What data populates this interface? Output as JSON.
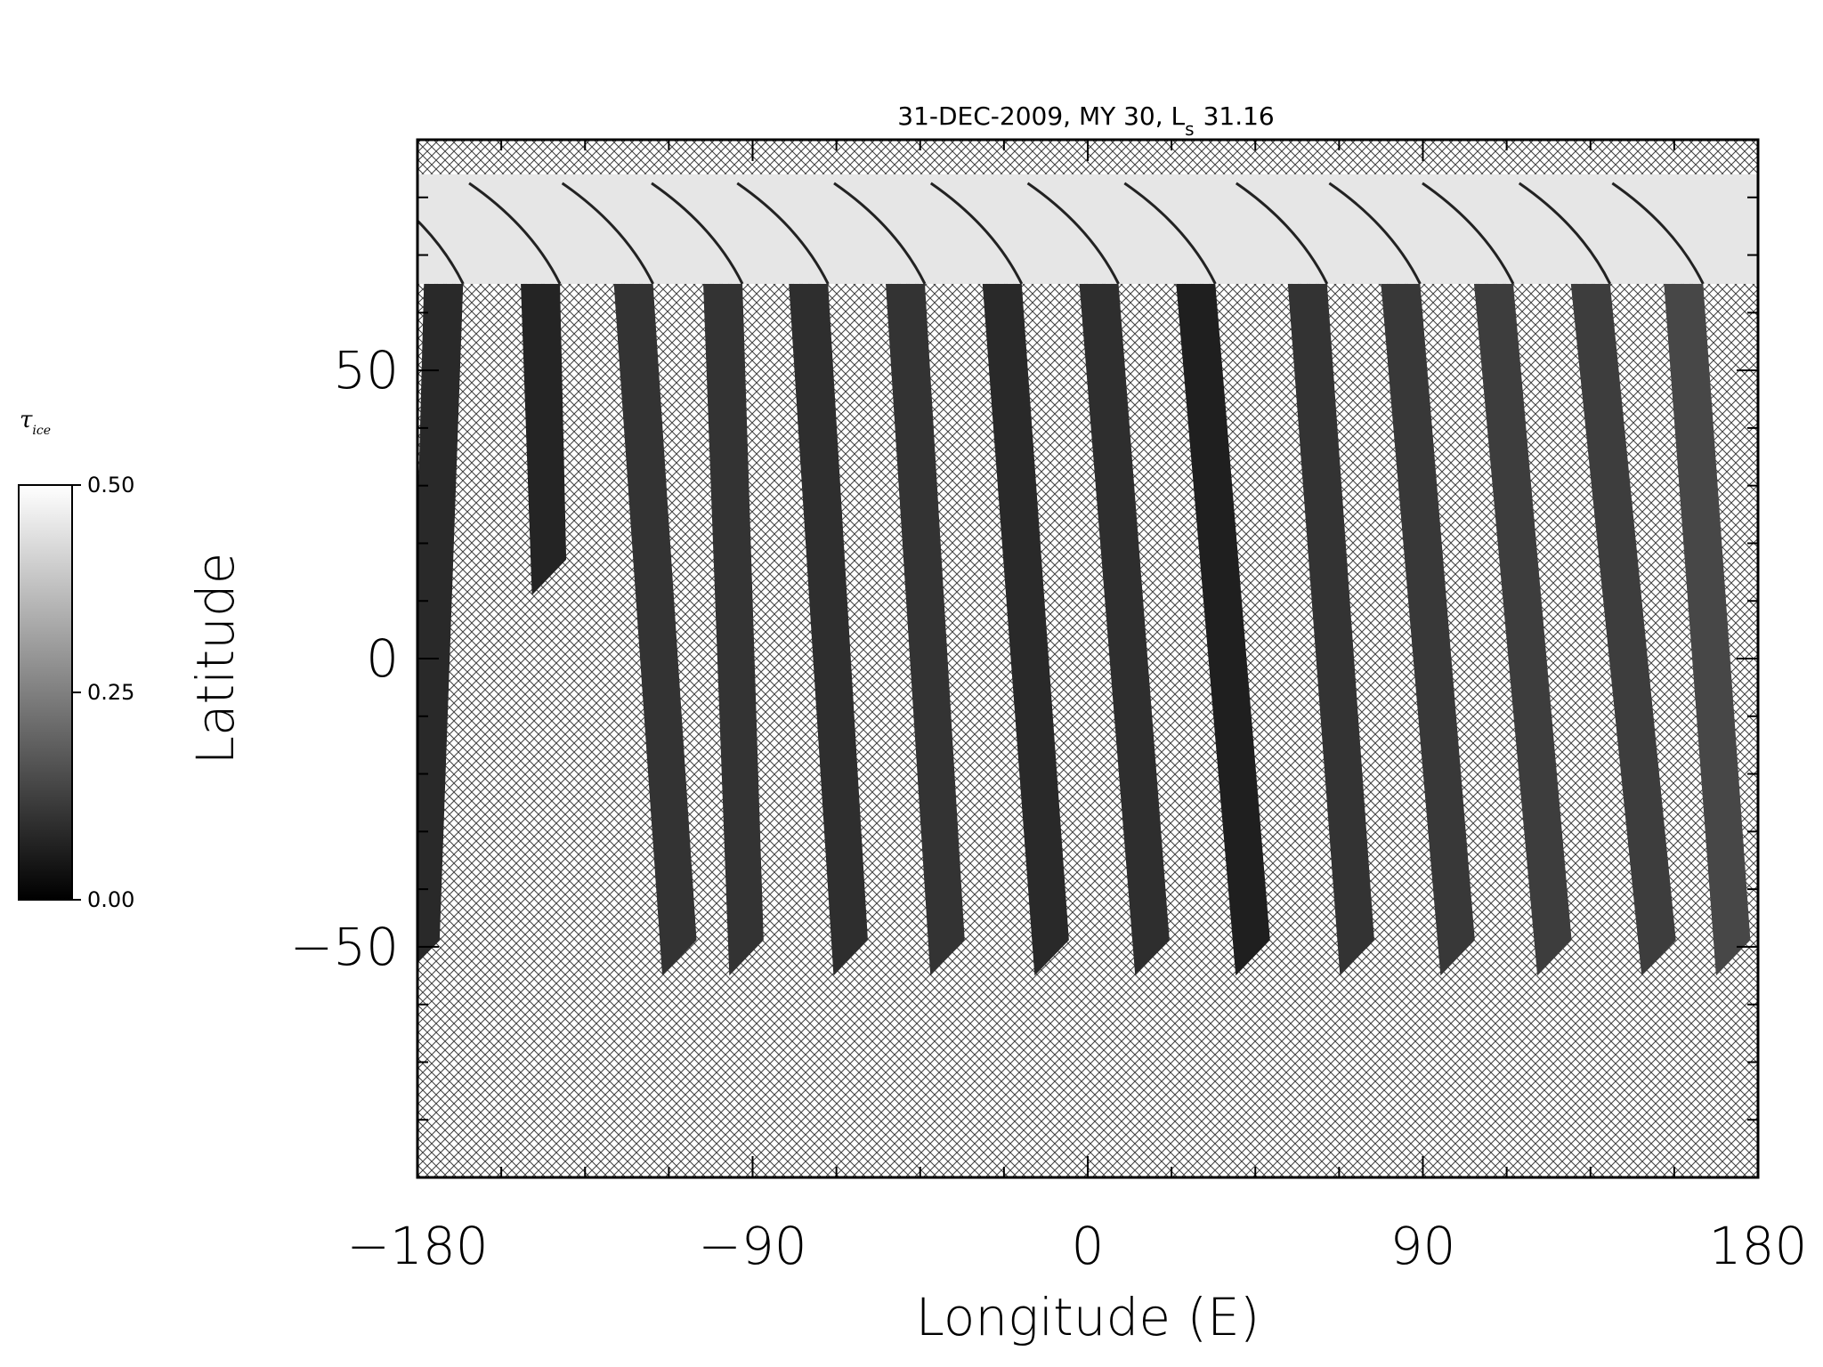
{
  "chart_data": {
    "type": "heatmap",
    "title": "31-DEC-2009, MY 30,  L",
    "title_subscript": "s",
    "title_value": "31.16",
    "xlabel": "Longitude (E)",
    "ylabel": "Latitude",
    "xlim": [
      -180,
      180
    ],
    "ylim": [
      -90,
      90
    ],
    "x_tick_labels": [
      "−180",
      "−90",
      "0",
      "90",
      "180"
    ],
    "x_ticks": [
      -180,
      -90,
      0,
      90,
      180
    ],
    "y_tick_labels": [
      "50",
      "0",
      "−50"
    ],
    "y_ticks": [
      50,
      0,
      -50
    ],
    "colorbar": {
      "label": "τ",
      "label_subscript": "ice",
      "range": [
        0.0,
        0.5
      ],
      "tick_labels": [
        "0.50",
        "0.25",
        "0.00"
      ],
      "ticks": [
        0.5,
        0.25,
        0.0
      ],
      "colormap": "grayscale"
    },
    "missing_data": "cross-hatched",
    "north_cap_band": {
      "lat_range": [
        65,
        84
      ],
      "value_approx": 0.45
    },
    "swaths": [
      {
        "lon_top": -173,
        "lat_top": 65,
        "lon_bottom": -178,
        "lat_bottom": -55,
        "value_approx": 0.08
      },
      {
        "lon_top": -147,
        "lat_top": 65,
        "lon_bottom": -144,
        "lat_bottom": 11,
        "value_approx": 0.07
      },
      {
        "lon_top": -122,
        "lat_top": 65,
        "lon_bottom": -109,
        "lat_bottom": -55,
        "value_approx": 0.1
      },
      {
        "lon_top": -98,
        "lat_top": 65,
        "lon_bottom": -91,
        "lat_bottom": -55,
        "value_approx": 0.1
      },
      {
        "lon_top": -75,
        "lat_top": 65,
        "lon_bottom": -63,
        "lat_bottom": -55,
        "value_approx": 0.09
      },
      {
        "lon_top": -49,
        "lat_top": 65,
        "lon_bottom": -37,
        "lat_bottom": -55,
        "value_approx": 0.1
      },
      {
        "lon_top": -23,
        "lat_top": 65,
        "lon_bottom": -9,
        "lat_bottom": -55,
        "value_approx": 0.08
      },
      {
        "lon_top": 3,
        "lat_top": 65,
        "lon_bottom": 18,
        "lat_bottom": -55,
        "value_approx": 0.09
      },
      {
        "lon_top": 29,
        "lat_top": 65,
        "lon_bottom": 45,
        "lat_bottom": -55,
        "value_approx": 0.06
      },
      {
        "lon_top": 59,
        "lat_top": 65,
        "lon_bottom": 73,
        "lat_bottom": -55,
        "value_approx": 0.1
      },
      {
        "lon_top": 84,
        "lat_top": 65,
        "lon_bottom": 100,
        "lat_bottom": -55,
        "value_approx": 0.11
      },
      {
        "lon_top": 109,
        "lat_top": 65,
        "lon_bottom": 126,
        "lat_bottom": -55,
        "value_approx": 0.12
      },
      {
        "lon_top": 135,
        "lat_top": 65,
        "lon_bottom": 154,
        "lat_bottom": -55,
        "value_approx": 0.12
      },
      {
        "lon_top": 160,
        "lat_top": 65,
        "lon_bottom": 174,
        "lat_bottom": -55,
        "value_approx": 0.14
      }
    ]
  },
  "colors": {
    "axis": "#000000",
    "background": "#ffffff",
    "hatch": "#000000"
  }
}
